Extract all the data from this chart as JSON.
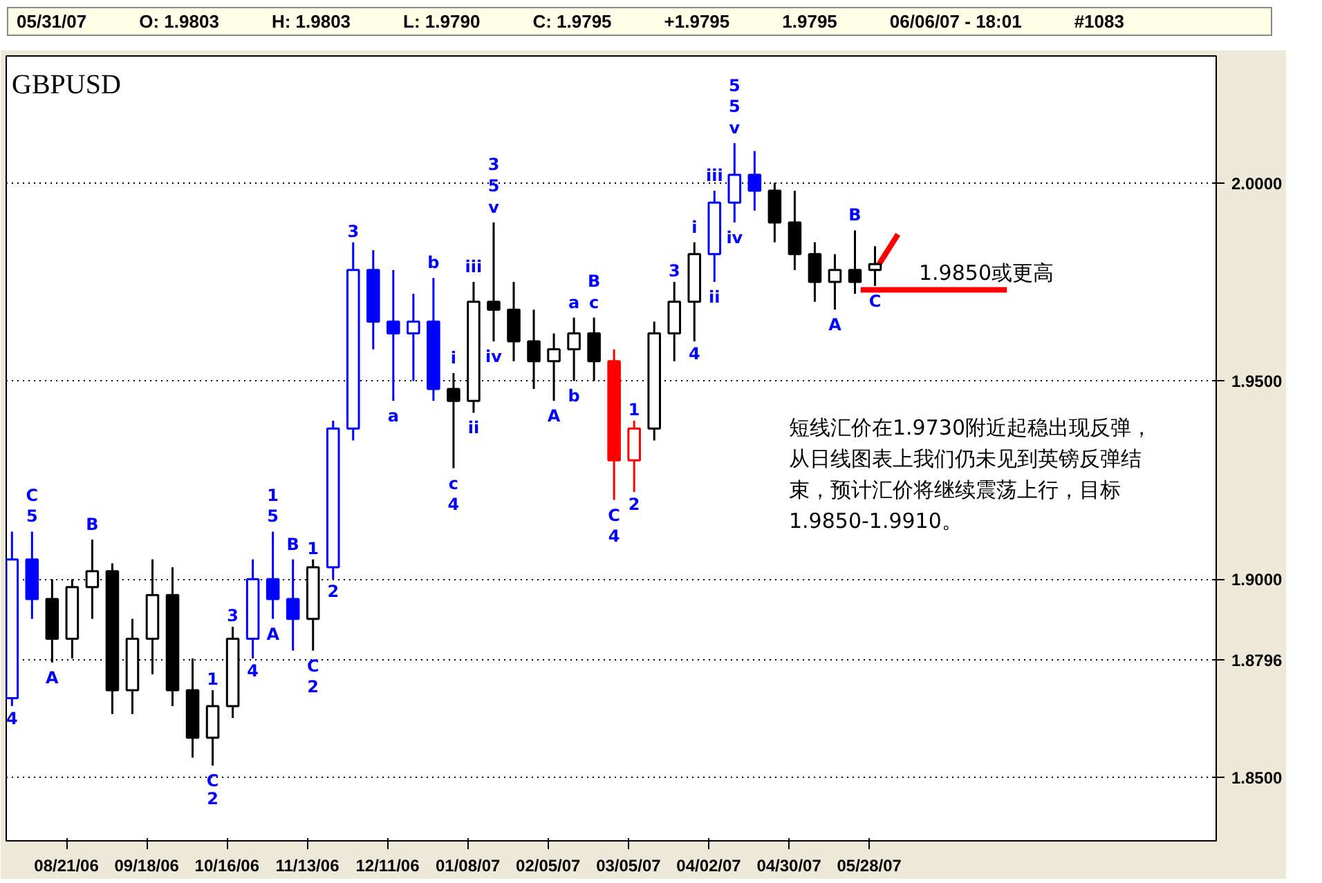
{
  "chart_data": {
    "type": "candlestick",
    "title": "GBPUSD",
    "x": [
      "2006-08-02",
      "2006-08-09",
      "2006-08-16",
      "2006-08-23",
      "2006-08-30",
      "2006-09-06",
      "2006-09-13",
      "2006-09-20",
      "2006-09-27",
      "2006-10-04",
      "2006-10-11",
      "2006-10-18",
      "2006-10-25",
      "2006-11-01",
      "2006-11-08",
      "2006-11-15",
      "2006-11-22",
      "2006-11-29",
      "2006-12-06",
      "2006-12-13",
      "2006-12-20",
      "2006-12-27",
      "2007-01-03",
      "2007-01-10",
      "2007-01-17",
      "2007-01-24",
      "2007-01-31",
      "2007-02-07",
      "2007-02-14",
      "2007-02-21",
      "2007-02-28",
      "2007-03-07",
      "2007-03-14",
      "2007-03-21",
      "2007-03-28",
      "2007-04-04",
      "2007-04-11",
      "2007-04-18",
      "2007-04-25",
      "2007-05-02",
      "2007-05-09",
      "2007-05-16",
      "2007-05-23",
      "2007-05-30"
    ],
    "ohlc": [
      [
        1.87,
        1.912,
        1.868,
        1.905
      ],
      [
        1.905,
        1.912,
        1.89,
        1.895
      ],
      [
        1.895,
        1.9,
        1.879,
        1.885
      ],
      [
        1.885,
        1.9,
        1.88,
        1.898
      ],
      [
        1.898,
        1.91,
        1.89,
        1.902
      ],
      [
        1.902,
        1.904,
        1.866,
        1.872
      ],
      [
        1.872,
        1.89,
        1.866,
        1.885
      ],
      [
        1.885,
        1.905,
        1.876,
        1.896
      ],
      [
        1.896,
        1.903,
        1.868,
        1.872
      ],
      [
        1.872,
        1.88,
        1.855,
        1.86
      ],
      [
        1.86,
        1.872,
        1.853,
        1.868
      ],
      [
        1.868,
        1.888,
        1.865,
        1.885
      ],
      [
        1.885,
        1.905,
        1.88,
        1.9
      ],
      [
        1.9,
        1.912,
        1.89,
        1.895
      ],
      [
        1.895,
        1.905,
        1.882,
        1.89
      ],
      [
        1.89,
        1.905,
        1.882,
        1.903
      ],
      [
        1.903,
        1.94,
        1.9,
        1.938
      ],
      [
        1.938,
        1.985,
        1.935,
        1.978
      ],
      [
        1.978,
        1.983,
        1.958,
        1.965
      ],
      [
        1.965,
        1.978,
        1.945,
        1.962
      ],
      [
        1.962,
        1.972,
        1.95,
        1.965
      ],
      [
        1.965,
        1.976,
        1.945,
        1.948
      ],
      [
        1.948,
        1.952,
        1.928,
        1.945
      ],
      [
        1.945,
        1.975,
        1.942,
        1.97
      ],
      [
        1.97,
        1.99,
        1.96,
        1.968
      ],
      [
        1.968,
        1.975,
        1.955,
        1.96
      ],
      [
        1.96,
        1.968,
        1.948,
        1.955
      ],
      [
        1.955,
        1.962,
        1.945,
        1.958
      ],
      [
        1.958,
        1.966,
        1.95,
        1.962
      ],
      [
        1.962,
        1.966,
        1.95,
        1.955
      ],
      [
        1.955,
        1.958,
        1.92,
        1.93
      ],
      [
        1.93,
        1.94,
        1.922,
        1.938
      ],
      [
        1.938,
        1.965,
        1.935,
        1.962
      ],
      [
        1.962,
        1.975,
        1.955,
        1.97
      ],
      [
        1.97,
        1.985,
        1.96,
        1.982
      ],
      [
        1.982,
        1.998,
        1.975,
        1.995
      ],
      [
        1.995,
        2.01,
        1.99,
        2.002
      ],
      [
        2.002,
        2.008,
        1.993,
        1.998
      ],
      [
        1.998,
        2.0,
        1.985,
        1.99
      ],
      [
        1.99,
        1.998,
        1.978,
        1.982
      ],
      [
        1.982,
        1.985,
        1.97,
        1.975
      ],
      [
        1.975,
        1.982,
        1.968,
        1.978
      ],
      [
        1.978,
        1.988,
        1.972,
        1.975
      ],
      [
        1.978,
        1.984,
        1.974,
        1.9795
      ]
    ],
    "colors": [
      "#0000ff",
      "#0000ff",
      "#000000",
      "#000000",
      "#000000",
      "#000000",
      "#000000",
      "#000000",
      "#000000",
      "#000000",
      "#000000",
      "#000000",
      "#0000ff",
      "#0000ff",
      "#0000ff",
      "#000000",
      "#0000ff",
      "#0000ff",
      "#0000ff",
      "#0000ff",
      "#0000ff",
      "#0000ff",
      "#000000",
      "#000000",
      "#000000",
      "#000000",
      "#000000",
      "#000000",
      "#000000",
      "#000000",
      "#ff0000",
      "#ff0000",
      "#000000",
      "#000000",
      "#000000",
      "#0000ff",
      "#0000ff",
      "#0000ff",
      "#000000",
      "#000000",
      "#000000",
      "#000000",
      "#000000",
      "#000000"
    ],
    "series": [
      {
        "type": "line",
        "x": [
          "2007-05-25",
          "2007-07-15"
        ],
        "values": [
          1.973,
          1.973
        ],
        "color": "#ff0000"
      },
      {
        "type": "line",
        "x": [
          "2007-05-31",
          "2007-06-07"
        ],
        "values": [
          1.979,
          1.987
        ],
        "color": "#ff0000"
      }
    ],
    "xlim": [
      "2006-07-31",
      "2007-09-26"
    ],
    "xticks": [
      {
        "value": "2006-08-21",
        "label": "08/21/06"
      },
      {
        "value": "2006-09-18",
        "label": "09/18/06"
      },
      {
        "value": "2006-10-16",
        "label": "10/16/06"
      },
      {
        "value": "2006-11-13",
        "label": "11/13/06"
      },
      {
        "value": "2006-12-11",
        "label": "12/11/06"
      },
      {
        "value": "2007-01-08",
        "label": "01/08/07"
      },
      {
        "value": "2007-02-05",
        "label": "02/05/07"
      },
      {
        "value": "2007-03-05",
        "label": "03/05/07"
      },
      {
        "value": "2007-04-02",
        "label": "04/02/07"
      },
      {
        "value": "2007-04-30",
        "label": "04/30/07"
      },
      {
        "value": "2007-05-28",
        "label": "05/28/07"
      }
    ],
    "ylim": [
      1.834,
      2.032
    ],
    "yticks": [
      {
        "value": 1.85,
        "label": "1.8500"
      },
      {
        "value": 1.8796,
        "label": "1.8796"
      },
      {
        "value": 1.9,
        "label": "1.9000"
      },
      {
        "value": 1.95,
        "label": "1.9500"
      },
      {
        "value": 2.0,
        "label": "2.0000"
      }
    ],
    "grid": "y",
    "annotations": [
      "05/31/07",
      "O: 1.9803",
      "H: 1.9803",
      "L: 1.9790",
      "C: 1.9795",
      "+1.9795",
      "1.9795",
      "06/06/07 - 18:01",
      "#1083",
      "1.9850或更高",
      "短线汇价在1.9730附近起稳出现反弹，从日线图表上我们仍未见到英镑反弹结束，预计汇价将继续震荡上行，目标1.9850-1.9910。",
      {
        "text": "4",
        "x": "2006-08-02",
        "y": 1.868
      },
      {
        "text": "C\n5",
        "x": "2006-08-09",
        "y": 1.912
      },
      {
        "text": "A",
        "x": "2006-08-16",
        "y": 1.879
      },
      {
        "text": "B",
        "x": "2006-08-30",
        "y": 1.91
      },
      {
        "text": "1",
        "x": "2006-10-11",
        "y": 1.872
      },
      {
        "text": "C",
        "x": "2006-10-11",
        "y": 1.853
      },
      {
        "text": "2",
        "x": "2006-10-11",
        "y": 1.853
      },
      {
        "text": "3",
        "x": "2006-10-18",
        "y": 1.888
      },
      {
        "text": "4",
        "x": "2006-10-25",
        "y": 1.88
      },
      {
        "text": "1\n5",
        "x": "2006-11-01",
        "y": 1.912
      },
      {
        "text": "A",
        "x": "2006-11-01",
        "y": 1.89
      },
      {
        "text": "B",
        "x": "2006-11-08",
        "y": 1.905
      },
      {
        "text": "1",
        "x": "2006-11-15",
        "y": 1.905
      },
      {
        "text": "C\n2",
        "x": "2006-11-15",
        "y": 1.882
      },
      {
        "text": "2",
        "x": "2006-11-22",
        "y": 1.9
      },
      {
        "text": "3",
        "x": "2006-11-29",
        "y": 1.985
      },
      {
        "text": "a",
        "x": "2006-12-13",
        "y": 1.945
      },
      {
        "text": "b",
        "x": "2006-12-27",
        "y": 1.976
      },
      {
        "text": "i",
        "x": "2007-01-03",
        "y": 1.952
      },
      {
        "text": "c\n4",
        "x": "2007-01-03",
        "y": 1.928
      },
      {
        "text": "iii",
        "x": "2007-01-10",
        "y": 1.975
      },
      {
        "text": "ii",
        "x": "2007-01-10",
        "y": 1.942
      },
      {
        "text": "3\n5\nv",
        "x": "2007-01-17",
        "y": 1.99
      },
      {
        "text": "iv",
        "x": "2007-01-17",
        "y": 1.96
      },
      {
        "text": "A",
        "x": "2007-02-07",
        "y": 1.945
      },
      {
        "text": "a",
        "x": "2007-02-14",
        "y": 1.966
      },
      {
        "text": "b",
        "x": "2007-02-14",
        "y": 1.95
      },
      {
        "text": "B\nc",
        "x": "2007-02-21",
        "y": 1.966
      },
      {
        "text": "C\n4",
        "x": "2007-02-28",
        "y": 1.92
      },
      {
        "text": "1",
        "x": "2007-03-07",
        "y": 1.94
      },
      {
        "text": "2",
        "x": "2007-03-07",
        "y": 1.922
      },
      {
        "text": "3",
        "x": "2007-03-21",
        "y": 1.975
      },
      {
        "text": "i",
        "x": "2007-03-28",
        "y": 1.985
      },
      {
        "text": "4",
        "x": "2007-03-28",
        "y": 1.96
      },
      {
        "text": "iii",
        "x": "2007-04-04",
        "y": 1.998
      },
      {
        "text": "ii",
        "x": "2007-04-04",
        "y": 1.975
      },
      {
        "text": "5\n5\nv",
        "x": "2007-04-11",
        "y": 2.01
      },
      {
        "text": "iv",
        "x": "2007-04-11",
        "y": 1.99
      },
      {
        "text": "A",
        "x": "2007-05-16",
        "y": 1.968
      },
      {
        "text": "B",
        "x": "2007-05-23",
        "y": 1.988
      },
      {
        "text": "C",
        "x": "2007-05-30",
        "y": 1.974
      }
    ]
  }
}
